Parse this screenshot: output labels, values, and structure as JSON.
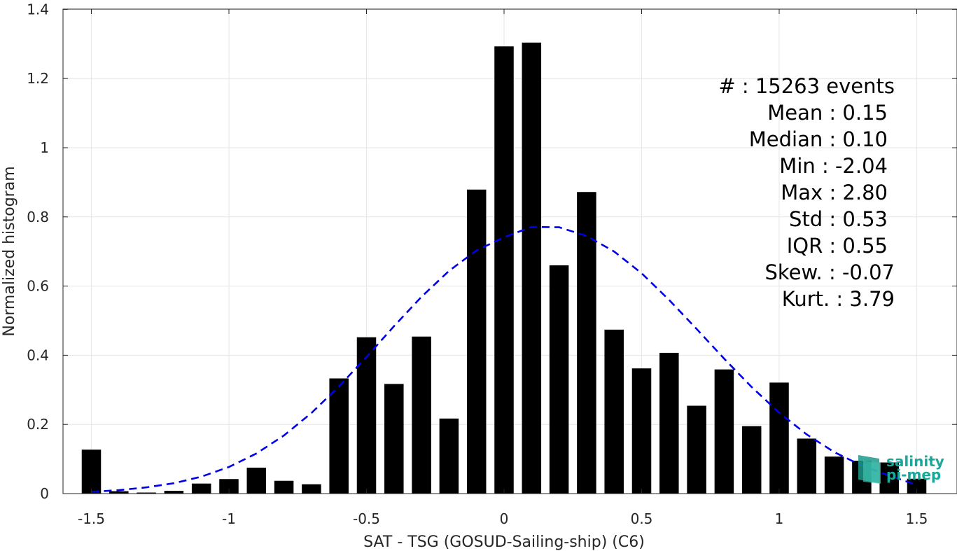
{
  "chart_data": {
    "type": "bar",
    "xlabel": "SAT - TSG (GOSUD-Sailing-ship) (C6)",
    "ylabel": "Normalized histogram",
    "xlim": [
      -1.6,
      1.6
    ],
    "ylim": [
      0,
      1.4
    ],
    "x_ticks": [
      -1.5,
      -1,
      -0.5,
      0,
      0.5,
      1,
      1.5
    ],
    "x_tick_labels": [
      "-1.5",
      "-1",
      "-0.5",
      "0",
      "0.5",
      "1",
      "1.5"
    ],
    "y_ticks": [
      0,
      0.2,
      0.4,
      0.6,
      0.8,
      1,
      1.2,
      1.4
    ],
    "y_tick_labels": [
      "0",
      "0.2",
      "0.4",
      "0.6",
      "0.8",
      "1",
      "1.2",
      "1.4"
    ],
    "grid": true,
    "bar_width": 0.07,
    "bar_color": "#000000",
    "series": [
      {
        "type": "bar",
        "x": [
          -1.5,
          -1.4,
          -1.3,
          -1.2,
          -1.1,
          -1.0,
          -0.9,
          -0.8,
          -0.7,
          -0.6,
          -0.5,
          -0.4,
          -0.3,
          -0.2,
          -0.1,
          0.0,
          0.1,
          0.2,
          0.3,
          0.4,
          0.5,
          0.6,
          0.7,
          0.8,
          0.9,
          1.0,
          1.1,
          1.2,
          1.3,
          1.4,
          1.5
        ],
        "values": [
          0.127,
          0.007,
          0.003,
          0.008,
          0.029,
          0.042,
          0.075,
          0.037,
          0.027,
          0.333,
          0.452,
          0.317,
          0.454,
          0.217,
          0.879,
          1.293,
          1.304,
          0.66,
          0.872,
          0.474,
          0.362,
          0.407,
          0.254,
          0.359,
          0.195,
          0.321,
          0.159,
          0.107,
          0.095,
          0.09,
          0.043
        ]
      },
      {
        "type": "line",
        "style": "dashed",
        "color": "#0000e6",
        "x": [
          -1.5,
          -1.4,
          -1.3,
          -1.2,
          -1.1,
          -1.0,
          -0.9,
          -0.8,
          -0.7,
          -0.6,
          -0.5,
          -0.4,
          -0.3,
          -0.2,
          -0.1,
          0.0,
          0.1,
          0.2,
          0.3,
          0.4,
          0.5,
          0.6,
          0.7,
          0.8,
          0.9,
          1.0,
          1.1,
          1.2,
          1.3,
          1.4,
          1.5
        ],
        "values": [
          0.005,
          0.01,
          0.018,
          0.03,
          0.049,
          0.077,
          0.116,
          0.168,
          0.233,
          0.31,
          0.395,
          0.484,
          0.569,
          0.644,
          0.703,
          0.741,
          0.771,
          0.77,
          0.745,
          0.7,
          0.637,
          0.56,
          0.476,
          0.39,
          0.308,
          0.234,
          0.171,
          0.12,
          0.081,
          0.052,
          0.025
        ]
      }
    ],
    "stats": [
      {
        "label": "#  : 15263 events"
      },
      {
        "label": "Mean : 0.15"
      },
      {
        "label": "Median : 0.10"
      },
      {
        "label": "Min : -2.04"
      },
      {
        "label": "Max : 2.80"
      },
      {
        "label": "Std : 0.53"
      },
      {
        "label": "IQR : 0.55"
      },
      {
        "label": "Skew. : -0.07"
      },
      {
        "label": "Kurt. : 3.79"
      }
    ]
  },
  "logo": {
    "line1": "salinity",
    "line2": "pi-mep"
  }
}
